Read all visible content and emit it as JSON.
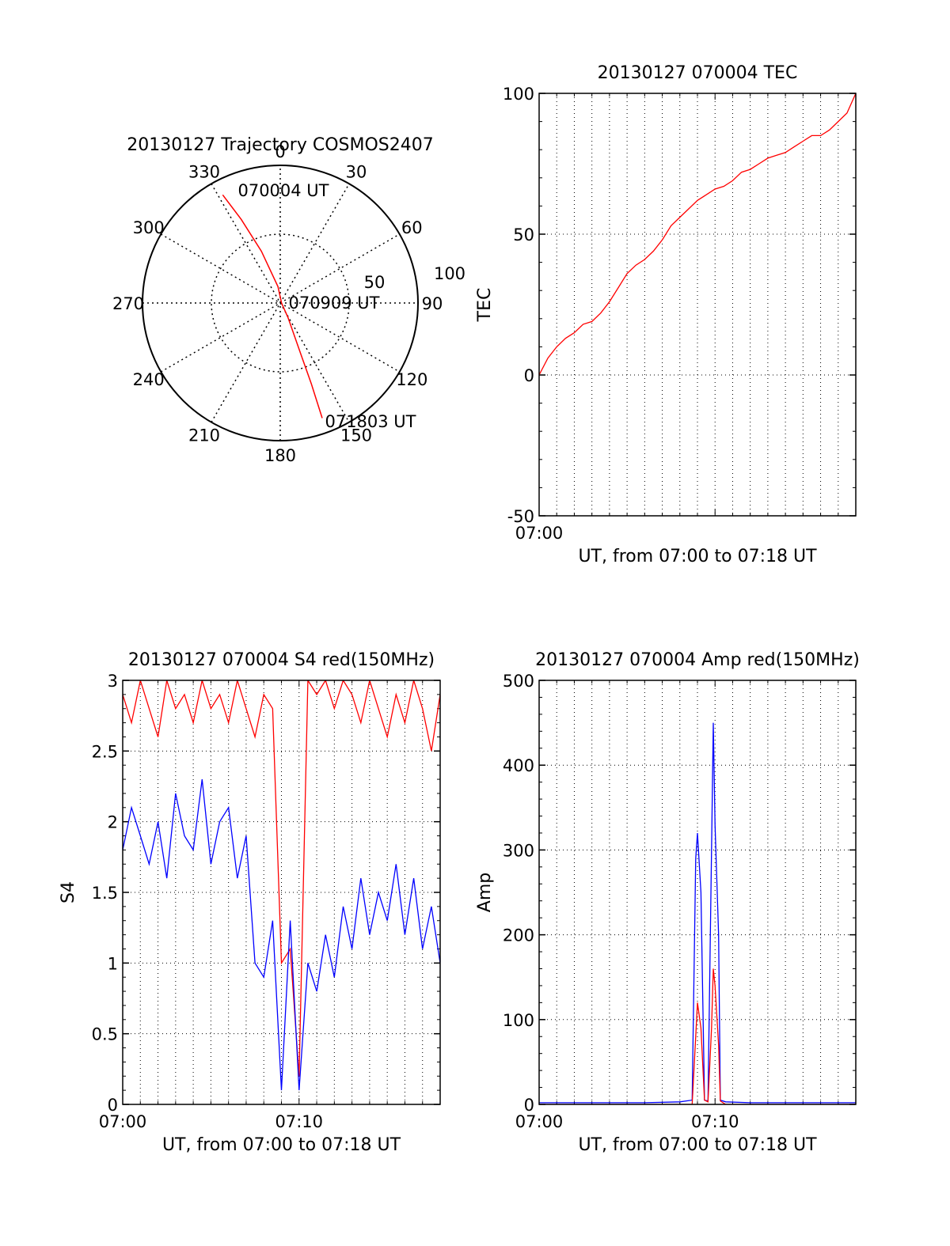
{
  "chart_data": [
    {
      "type": "polar",
      "title": "20130127 Trajectory COSMOS2407",
      "angle_ticks": [
        "0",
        "30",
        "60",
        "90",
        "120",
        "150",
        "180",
        "210",
        "240",
        "270",
        "300",
        "330"
      ],
      "radial_ticks": [
        "50",
        "100"
      ],
      "radial_range": [
        0,
        100
      ],
      "grid": true,
      "series": [
        {
          "color": "#ff0000",
          "points": [
            {
              "azimuth_deg": 332,
              "radius": 89
            },
            {
              "azimuth_deg": 335,
              "radius": 67
            },
            {
              "azimuth_deg": 340,
              "radius": 40
            },
            {
              "azimuth_deg": 352,
              "radius": 12
            },
            {
              "azimuth_deg": 95,
              "radius": 1
            },
            {
              "azimuth_deg": 152,
              "radius": 12
            },
            {
              "azimuth_deg": 158,
              "radius": 38
            },
            {
              "azimuth_deg": 159,
              "radius": 63
            },
            {
              "azimuth_deg": 160,
              "radius": 89
            }
          ]
        }
      ],
      "annotations": [
        "070004 UT",
        "070909 UT",
        "071803 UT"
      ]
    },
    {
      "type": "line",
      "title": "20130127 070004 TEC",
      "xlabel": "UT, from 07:00 to 07:18 UT",
      "ylabel": "TEC",
      "x_unit": "minutes after 07:00",
      "xlim": [
        0,
        18
      ],
      "ylim": [
        -50,
        100
      ],
      "xticks": [
        "07:00"
      ],
      "yticks": [
        "-50",
        "0",
        "50",
        "100"
      ],
      "grid": true,
      "series": [
        {
          "color": "#ff0000",
          "x": [
            0,
            0.5,
            1,
            1.5,
            2,
            2.5,
            3,
            3.5,
            4,
            4.5,
            5,
            5.5,
            6,
            6.5,
            7,
            7.5,
            8,
            8.5,
            9,
            9.5,
            10,
            10.5,
            11,
            11.5,
            12,
            12.5,
            13,
            13.5,
            14,
            14.5,
            15,
            15.5,
            16,
            16.5,
            17,
            17.5,
            18
          ],
          "y": [
            0,
            6,
            10,
            13,
            15,
            18,
            19,
            22,
            26,
            31,
            36,
            39,
            41,
            44,
            48,
            53,
            56,
            59,
            62,
            64,
            66,
            67,
            69,
            72,
            73,
            75,
            77,
            78,
            79,
            81,
            83,
            85,
            85,
            87,
            90,
            93,
            100
          ]
        }
      ]
    },
    {
      "type": "line",
      "title": "20130127 070004 S4 red(150MHz)",
      "xlabel": "UT, from 07:00 to 07:18 UT",
      "ylabel": "S4",
      "x_unit": "minutes after 07:00",
      "xlim": [
        0,
        18
      ],
      "ylim": [
        0,
        3
      ],
      "xticks": [
        "07:00",
        "07:10"
      ],
      "yticks": [
        "0",
        "0.5",
        "1",
        "1.5",
        "2",
        "2.5",
        "3"
      ],
      "grid": true,
      "series": [
        {
          "color": "#ff0000",
          "x": [
            0,
            0.5,
            1,
            1.5,
            2,
            2.5,
            3,
            3.5,
            4,
            4.5,
            5,
            5.5,
            6,
            6.5,
            7,
            7.5,
            8,
            8.5,
            9,
            9.5,
            10,
            10.5,
            11,
            11.5,
            12,
            12.5,
            13,
            13.5,
            14,
            14.5,
            15,
            15.5,
            16,
            16.5,
            17,
            17.5,
            18
          ],
          "y": [
            2.9,
            2.7,
            3.0,
            2.8,
            2.6,
            3.0,
            2.8,
            2.9,
            2.7,
            3.0,
            2.8,
            2.9,
            2.7,
            3.0,
            2.8,
            2.6,
            2.9,
            2.8,
            1.0,
            1.1,
            0.2,
            3.0,
            2.9,
            3.0,
            2.8,
            3.0,
            2.9,
            2.7,
            3.0,
            2.8,
            2.6,
            2.9,
            2.7,
            3.0,
            2.8,
            2.5,
            2.9
          ]
        },
        {
          "color": "#0000ff",
          "x": [
            0,
            0.5,
            1,
            1.5,
            2,
            2.5,
            3,
            3.5,
            4,
            4.5,
            5,
            5.5,
            6,
            6.5,
            7,
            7.5,
            8,
            8.5,
            9,
            9.5,
            10,
            10.5,
            11,
            11.5,
            12,
            12.5,
            13,
            13.5,
            14,
            14.5,
            15,
            15.5,
            16,
            16.5,
            17,
            17.5,
            18
          ],
          "y": [
            1.8,
            2.1,
            1.9,
            1.7,
            2.0,
            1.6,
            2.2,
            1.9,
            1.8,
            2.3,
            1.7,
            2.0,
            2.1,
            1.6,
            1.9,
            1.0,
            0.9,
            1.3,
            0.1,
            1.3,
            0.1,
            1.0,
            0.8,
            1.2,
            0.9,
            1.4,
            1.1,
            1.6,
            1.2,
            1.5,
            1.3,
            1.7,
            1.2,
            1.6,
            1.1,
            1.4,
            1.0
          ]
        }
      ]
    },
    {
      "type": "line",
      "title": "20130127 070004 Amp red(150MHz)",
      "xlabel": "UT, from 07:00 to 07:18 UT",
      "ylabel": "Amp",
      "x_unit": "minutes after 07:00",
      "xlim": [
        0,
        18
      ],
      "ylim": [
        0,
        500
      ],
      "xticks": [
        "07:00",
        "07:10"
      ],
      "yticks": [
        "0",
        "100",
        "200",
        "300",
        "400",
        "500"
      ],
      "grid": true,
      "series": [
        {
          "color": "#0000ff",
          "x": [
            0,
            2,
            4,
            6,
            8,
            8.7,
            8.9,
            9.0,
            9.2,
            9.4,
            9.6,
            9.8,
            9.9,
            10.0,
            10.2,
            10.3,
            10.6,
            12,
            14,
            16,
            18
          ],
          "y": [
            2,
            2,
            2,
            2,
            3,
            5,
            290,
            320,
            250,
            5,
            4,
            300,
            450,
            330,
            200,
            5,
            3,
            2,
            2,
            2,
            2
          ]
        },
        {
          "color": "#ff0000",
          "x": [
            0,
            2,
            4,
            6,
            8,
            8.7,
            8.9,
            9.0,
            9.2,
            9.4,
            9.6,
            9.8,
            9.9,
            10.0,
            10.2,
            10.3,
            10.6,
            12,
            14,
            16,
            18
          ],
          "y": [
            0,
            0,
            0,
            0,
            0,
            0,
            80,
            120,
            90,
            5,
            3,
            90,
            160,
            140,
            70,
            4,
            0,
            0,
            0,
            0,
            0
          ]
        }
      ]
    }
  ]
}
